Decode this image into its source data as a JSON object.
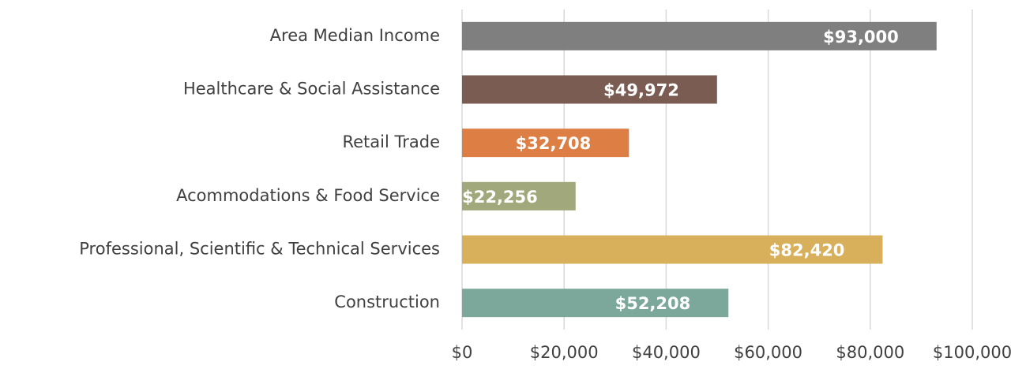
{
  "chart_data": {
    "type": "hbar",
    "categories": [
      "Area Median Income",
      "Healthcare & Social Assistance",
      "Retail Trade",
      "Acommodations & Food Service",
      "Professional, Scientific & Technical Services",
      "Construction"
    ],
    "values": [
      93000,
      49972,
      32708,
      22256,
      82420,
      52208
    ],
    "value_labels": [
      "$93,000",
      "$49,972",
      "$32,708",
      "$22,256",
      "$82,420",
      "$52,208"
    ],
    "colors": [
      "#7f7f7f",
      "#7a5c52",
      "#dd7f45",
      "#a1a97c",
      "#d8b05b",
      "#7ba89a"
    ],
    "xlim": [
      0,
      100000
    ],
    "xticks": [
      {
        "value": 0,
        "label": "$0"
      },
      {
        "value": 20000,
        "label": "$20,000"
      },
      {
        "value": 40000,
        "label": "$40,000"
      },
      {
        "value": 60000,
        "label": "$60,000"
      },
      {
        "value": 80000,
        "label": "$80,000"
      },
      {
        "value": 100000,
        "label": "$100,000"
      }
    ],
    "grid": true
  }
}
